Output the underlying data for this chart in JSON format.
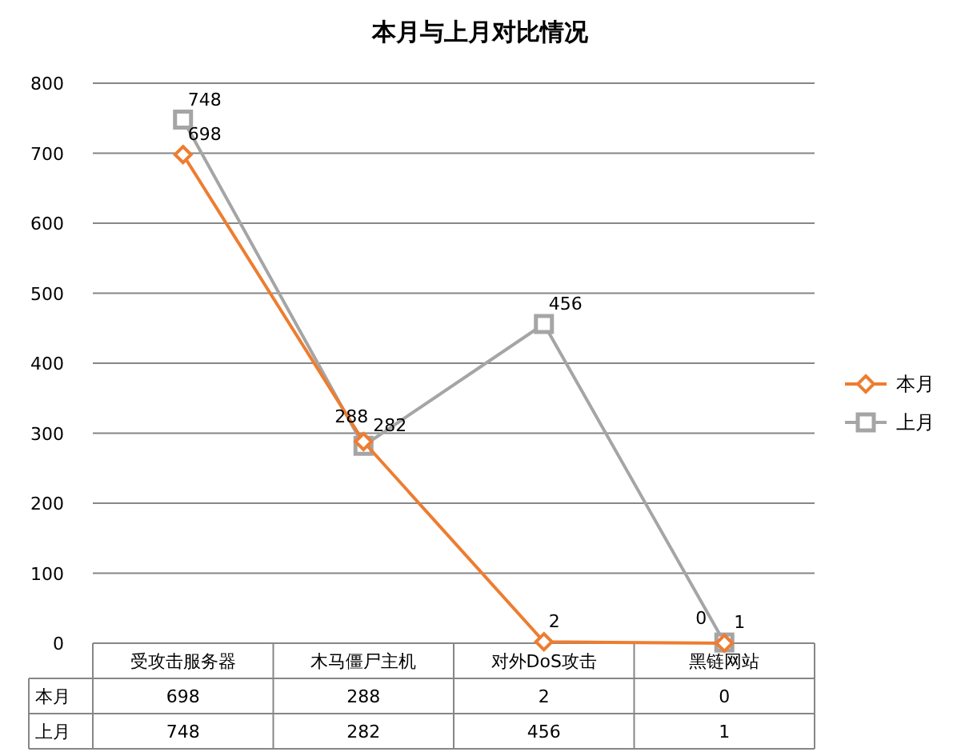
{
  "chart_data": {
    "type": "line",
    "title": "本月与上月对比情况",
    "categories": [
      "受攻击服务器",
      "木马僵尸主机",
      "对外DoS攻击",
      "黑链网站"
    ],
    "series": [
      {
        "name": "本月",
        "color": "#ed7d31",
        "marker": "diamond",
        "values": [
          698,
          288,
          2,
          0
        ],
        "value_labels": [
          "698",
          "288",
          "2",
          "0"
        ]
      },
      {
        "name": "上月",
        "color": "#a5a5a5",
        "marker": "square",
        "values": [
          748,
          282,
          456,
          1
        ],
        "value_labels": [
          "748",
          "282",
          "456",
          "1"
        ]
      }
    ],
    "ylim": [
      0,
      800
    ],
    "yticks": [
      0,
      100,
      200,
      300,
      400,
      500,
      600,
      700,
      800
    ],
    "grid": "y",
    "legend": "right",
    "data_labels": true
  }
}
